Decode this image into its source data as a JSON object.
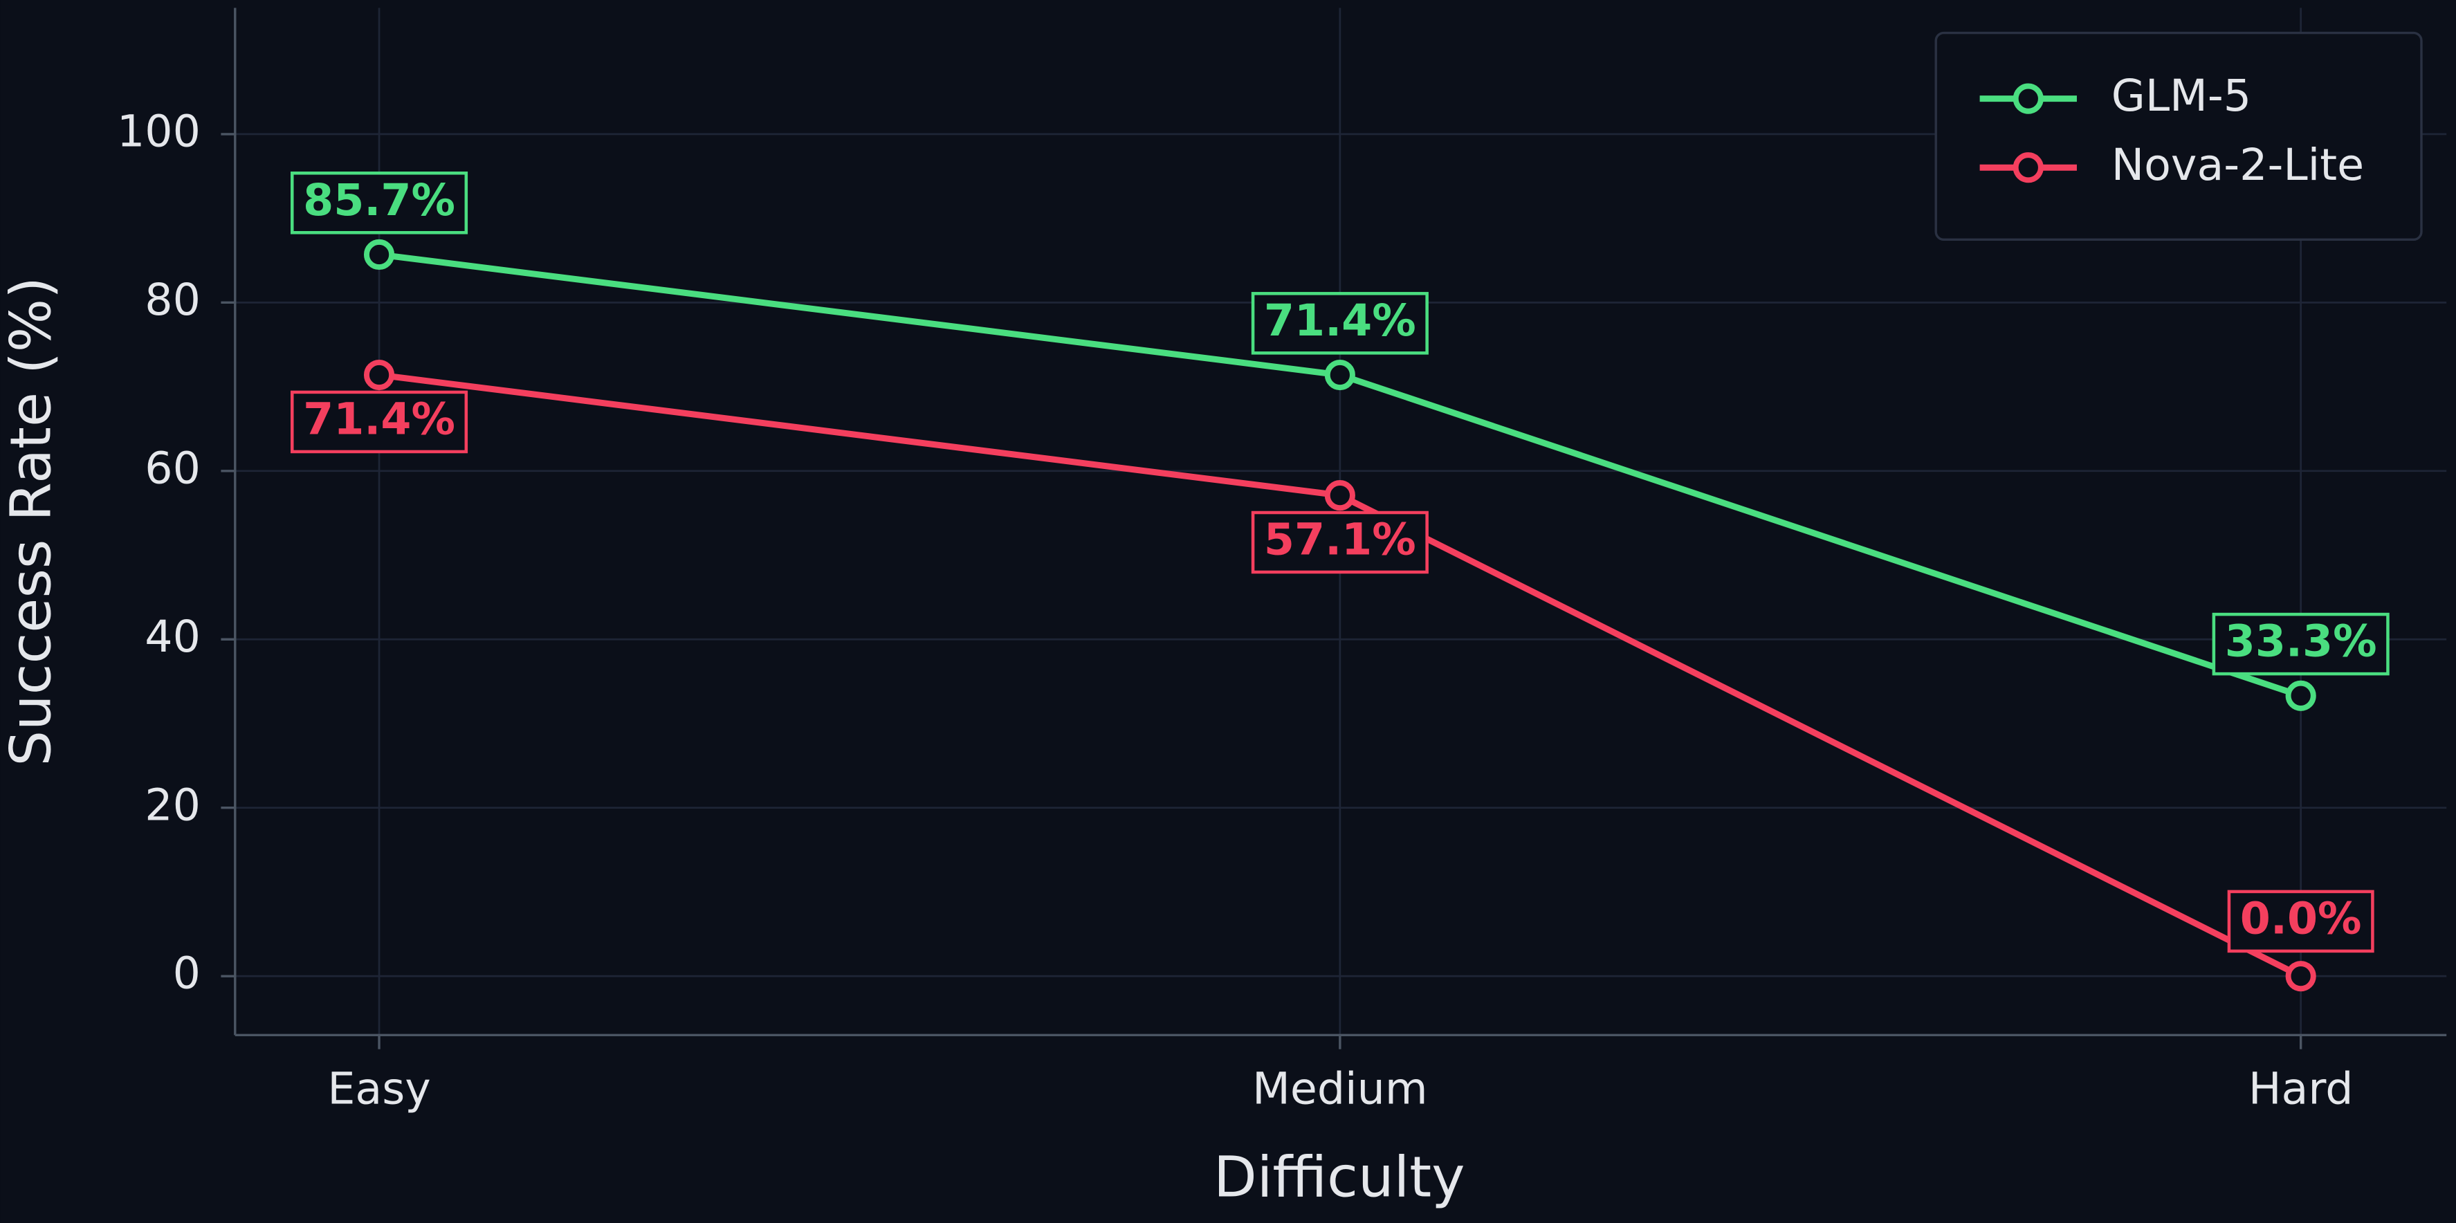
{
  "chart_data": {
    "type": "line",
    "x_label": "Difficulty",
    "y_label": "Success Rate (%)",
    "categories": [
      "Easy",
      "Medium",
      "Hard"
    ],
    "series": [
      {
        "name": "GLM-5",
        "color": "#4ade80",
        "values": [
          85.7,
          71.4,
          33.3
        ],
        "value_labels": [
          "85.7%",
          "71.4%",
          "33.3%"
        ]
      },
      {
        "name": "Nova-2-Lite",
        "color": "#f43f5e",
        "values": [
          71.4,
          57.1,
          0.0
        ],
        "value_labels": [
          "71.4%",
          "57.1%",
          "0.0%"
        ]
      }
    ],
    "ylim": [
      -7,
      115
    ],
    "yticks": [
      0,
      20,
      40,
      60,
      80,
      100
    ],
    "grid": true,
    "legend": "upper right"
  }
}
